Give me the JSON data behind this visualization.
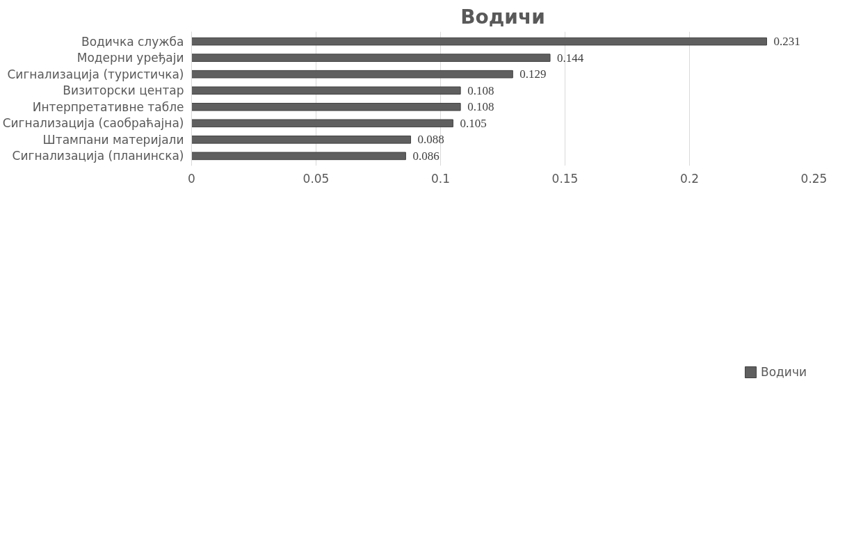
{
  "chart_data": {
    "type": "bar",
    "orientation": "horizontal",
    "title": "Водичи",
    "categories": [
      "Водичка служба",
      "Модерни уређаји",
      "Сигнализација (туристичка)",
      "Визиторски центар",
      "Интерпретативне табле",
      "Сигнализација (саобраћајна)",
      "Штампани материјали",
      "Сигнализација (планинска)"
    ],
    "series": [
      {
        "name": "Водичи",
        "color": "#5f5f5f",
        "values": [
          0.231,
          0.144,
          0.129,
          0.108,
          0.108,
          0.105,
          0.088,
          0.086
        ]
      }
    ],
    "xlim": [
      0,
      0.25
    ],
    "xticks": [
      0,
      0.05,
      0.1,
      0.15,
      0.2,
      0.25
    ],
    "data_labels": true,
    "grid": "x",
    "legend": "bottom"
  }
}
